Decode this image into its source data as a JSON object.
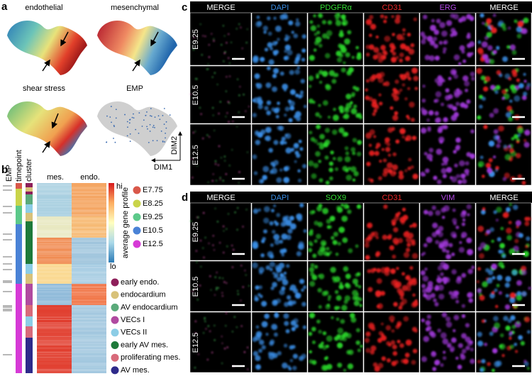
{
  "panels": {
    "a": {
      "label": "a",
      "plots": [
        {
          "title": "endothelial"
        },
        {
          "title": "mesenchymal"
        },
        {
          "title": "shear stress"
        },
        {
          "title": "EMP"
        }
      ],
      "axis_x": "DIM1",
      "axis_y": "DIM2"
    },
    "b": {
      "label": "b",
      "tracks": [
        "EMP",
        "timepoint",
        "cluster"
      ],
      "columns": [
        "mes.",
        "endo."
      ],
      "colorbar": {
        "title": "average gene profile",
        "hi": "hi",
        "lo": "lo"
      },
      "timepoints": [
        {
          "name": "E7.75",
          "color": "#d9584a"
        },
        {
          "name": "E8.25",
          "color": "#c9d44a"
        },
        {
          "name": "E9.25",
          "color": "#5cc98a"
        },
        {
          "name": "E10.5",
          "color": "#4a82d6"
        },
        {
          "name": "E12.5",
          "color": "#d63ad6"
        }
      ],
      "clusters": [
        {
          "name": "early endo.",
          "color": "#8e1f5a"
        },
        {
          "name": "endocardium",
          "color": "#d8c27a"
        },
        {
          "name": "AV endocardium",
          "color": "#5aaa7a"
        },
        {
          "name": "VECs I",
          "color": "#b04aa0"
        },
        {
          "name": "VECs II",
          "color": "#8ccde6"
        },
        {
          "name": "early AV mes.",
          "color": "#1e7a3a"
        },
        {
          "name": "proliferating mes.",
          "color": "#d86a7a"
        },
        {
          "name": "AV mes.",
          "color": "#2e2a8a"
        }
      ]
    },
    "c": {
      "label": "c",
      "headers": [
        {
          "text": "MERGE",
          "color": "#ffffff"
        },
        {
          "text": "DAPI",
          "color": "#3a8ee6"
        },
        {
          "text": "PDGFRα",
          "color": "#33dd33"
        },
        {
          "text": "CD31",
          "color": "#ee2828"
        },
        {
          "text": "ERG",
          "color": "#b448e8"
        },
        {
          "text": "MERGE",
          "color": "#ffffff"
        }
      ],
      "rows": [
        "E9.25",
        "E10.5",
        "E12.5"
      ]
    },
    "d": {
      "label": "d",
      "headers": [
        {
          "text": "MERGE",
          "color": "#ffffff"
        },
        {
          "text": "DAPI",
          "color": "#3a8ee6"
        },
        {
          "text": "SOX9",
          "color": "#33dd33"
        },
        {
          "text": "CD31",
          "color": "#ee2828"
        },
        {
          "text": "VIM",
          "color": "#b448e8"
        },
        {
          "text": "MERGE",
          "color": "#ffffff"
        }
      ],
      "rows": [
        "E9.25",
        "E10.5",
        "E12.5"
      ]
    }
  }
}
